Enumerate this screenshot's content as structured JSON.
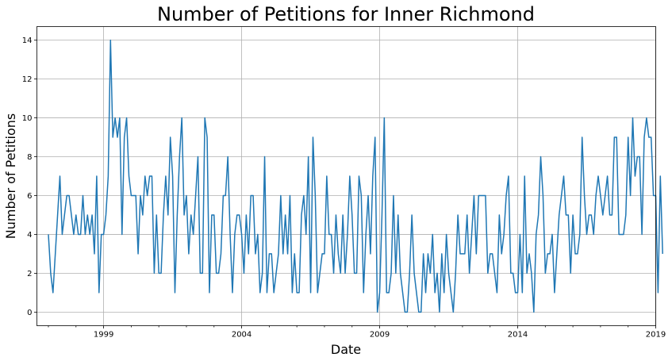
{
  "chart_data": {
    "type": "line",
    "title": "Number of Petitions for Inner Richmond",
    "xlabel": "Date",
    "ylabel": "Number of Petitions",
    "xlim": [
      "1996-08",
      "2019-01"
    ],
    "ylim": [
      -0.7,
      14.7
    ],
    "grid": true,
    "x_ticks": [
      "1999",
      "2004",
      "2009",
      "2014",
      "2019"
    ],
    "y_ticks": [
      "0",
      "2",
      "4",
      "6",
      "8",
      "10",
      "12",
      "14"
    ],
    "series": [
      {
        "color": "#1f77b4",
        "x_start": "1997-01",
        "x_step": "1 month",
        "values": [
          4,
          2,
          1,
          3,
          5,
          7,
          4,
          5,
          6,
          6,
          5,
          4,
          5,
          4,
          4,
          6,
          4,
          5,
          4,
          5,
          3,
          7,
          1,
          4,
          4,
          5,
          7,
          14,
          9,
          10,
          9,
          10,
          4,
          9,
          10,
          7,
          6,
          6,
          6,
          3,
          6,
          5,
          7,
          6,
          7,
          7,
          2,
          5,
          2,
          2,
          5,
          7,
          5,
          9,
          7,
          1,
          5,
          8,
          10,
          5,
          6,
          3,
          5,
          4,
          6,
          8,
          2,
          2,
          10,
          9,
          1,
          5,
          5,
          2,
          2,
          3,
          6,
          6,
          8,
          4,
          1,
          4,
          5,
          5,
          4,
          2,
          5,
          3,
          6,
          6,
          3,
          4,
          1,
          2,
          8,
          1,
          3,
          3,
          1,
          2,
          3,
          6,
          3,
          5,
          3,
          6,
          1,
          3,
          1,
          1,
          5,
          6,
          4,
          8,
          1,
          9,
          6,
          1,
          2,
          3,
          3,
          7,
          4,
          4,
          2,
          5,
          3,
          2,
          5,
          2,
          4,
          7,
          5,
          2,
          2,
          7,
          6,
          1,
          4,
          6,
          3,
          7,
          9,
          0,
          1,
          5,
          10,
          1,
          1,
          2,
          6,
          2,
          5,
          2,
          1,
          0,
          0,
          2,
          5,
          2,
          1,
          0,
          0,
          3,
          1,
          3,
          2,
          4,
          1,
          2,
          0,
          3,
          1,
          4,
          2,
          1,
          0,
          2,
          5,
          3,
          3,
          3,
          5,
          2,
          4,
          6,
          3,
          6,
          6,
          6,
          6,
          2,
          3,
          3,
          2,
          1,
          5,
          3,
          4,
          6,
          7,
          2,
          2,
          1,
          1,
          4,
          1,
          7,
          2,
          3,
          2,
          0,
          4,
          5,
          8,
          6,
          2,
          3,
          3,
          4,
          1,
          3,
          5,
          6,
          7,
          5,
          5,
          2,
          5,
          3,
          3,
          4,
          9,
          6,
          4,
          5,
          5,
          4,
          6,
          7,
          6,
          5,
          6,
          7,
          5,
          5,
          9,
          9,
          4,
          4,
          4,
          5,
          9,
          6,
          10,
          7,
          8,
          8,
          4,
          9,
          10,
          9,
          9,
          6,
          6,
          1,
          7,
          3
        ]
      }
    ]
  }
}
